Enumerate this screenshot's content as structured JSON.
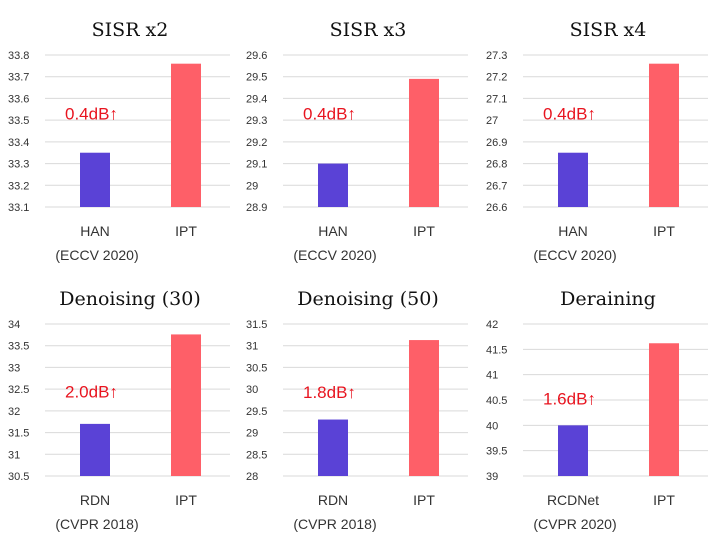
{
  "colors": {
    "baseline": "#5a42d6",
    "ours": "#fe5f68",
    "annotation": "#e8141f"
  },
  "chart_data": [
    {
      "type": "bar",
      "title": "SISR x2",
      "categories": [
        "HAN",
        "IPT"
      ],
      "category_sublabels": [
        "(ECCV 2020)",
        ""
      ],
      "values": [
        33.35,
        33.76
      ],
      "ylim": [
        33.1,
        33.8
      ],
      "yticks": [
        "33.1",
        "33.2",
        "33.3",
        "33.4",
        "33.5",
        "33.6",
        "33.7",
        "33.8"
      ],
      "annotation": "0.4dB↑",
      "annotation_value": 33.53,
      "xlabel": "",
      "ylabel": "",
      "grid": true
    },
    {
      "type": "bar",
      "title": "SISR x3",
      "categories": [
        "HAN",
        "IPT"
      ],
      "category_sublabels": [
        "(ECCV 2020)",
        ""
      ],
      "values": [
        29.1,
        29.49
      ],
      "ylim": [
        28.9,
        29.6
      ],
      "yticks": [
        "28.9",
        "29",
        "29.1",
        "29.2",
        "29.3",
        "29.4",
        "29.5",
        "29.6"
      ],
      "annotation": "0.4dB↑",
      "annotation_value": 29.33,
      "xlabel": "",
      "ylabel": "",
      "grid": true
    },
    {
      "type": "bar",
      "title": "SISR x4",
      "categories": [
        "HAN",
        "IPT"
      ],
      "category_sublabels": [
        "(ECCV 2020)",
        ""
      ],
      "values": [
        26.85,
        27.26
      ],
      "ylim": [
        26.6,
        27.3
      ],
      "yticks": [
        "26.6",
        "26.7",
        "26.8",
        "26.9",
        "27",
        "27.1",
        "27.2",
        "27.3"
      ],
      "annotation": "0.4dB↑",
      "annotation_value": 27.03,
      "xlabel": "",
      "ylabel": "",
      "grid": true
    },
    {
      "type": "bar",
      "title": "Denoising (30)",
      "categories": [
        "RDN",
        "IPT"
      ],
      "category_sublabels": [
        "(CVPR 2018)",
        ""
      ],
      "values": [
        31.7,
        33.76
      ],
      "ylim": [
        30.5,
        34
      ],
      "yticks": [
        "30.5",
        "31",
        "31.5",
        "32",
        "32.5",
        "33",
        "33.5",
        "34"
      ],
      "annotation": "2.0dB↑",
      "annotation_value": 32.44,
      "xlabel": "",
      "ylabel": "",
      "grid": true
    },
    {
      "type": "bar",
      "title": "Denoising (50)",
      "categories": [
        "RDN",
        "IPT"
      ],
      "category_sublabels": [
        "(CVPR 2018)",
        ""
      ],
      "values": [
        29.3,
        31.13
      ],
      "ylim": [
        28,
        31.5
      ],
      "yticks": [
        "28",
        "28.5",
        "29",
        "29.5",
        "30",
        "30.5",
        "31",
        "31.5"
      ],
      "annotation": "1.8dB↑",
      "annotation_value": 29.93,
      "xlabel": "",
      "ylabel": "",
      "grid": true
    },
    {
      "type": "bar",
      "title": "Deraining",
      "categories": [
        "RCDNet",
        "IPT"
      ],
      "category_sublabels": [
        "(CVPR 2020)",
        ""
      ],
      "values": [
        40,
        41.62
      ],
      "ylim": [
        39,
        42
      ],
      "yticks": [
        "39",
        "39.5",
        "40",
        "40.5",
        "41",
        "41.5",
        "42"
      ],
      "annotation": "1.6dB↑",
      "annotation_value": 40.53,
      "xlabel": "",
      "ylabel": "",
      "grid": true
    }
  ]
}
